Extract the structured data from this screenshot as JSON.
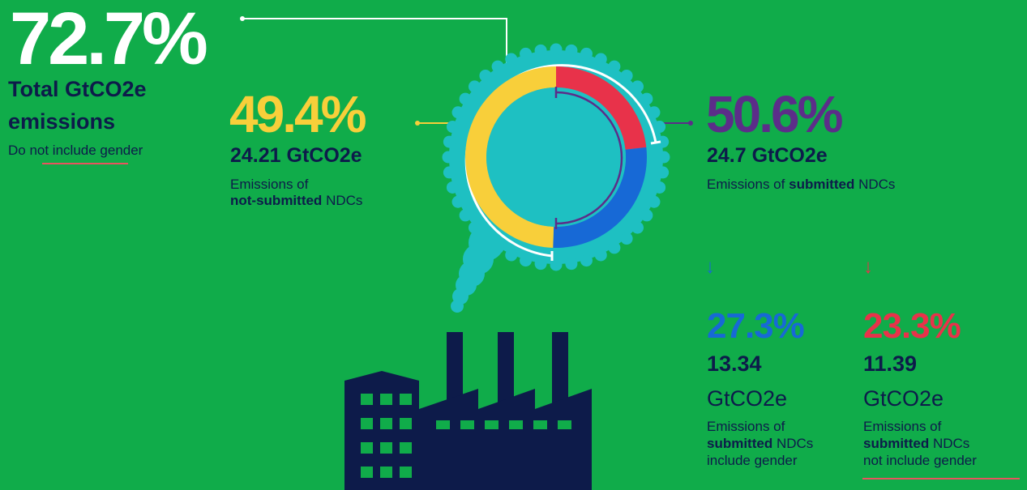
{
  "total": {
    "percent": "72.7%",
    "label": "Total GtCO2e emissions",
    "note": "Do not include gender"
  },
  "not_submitted": {
    "percent": "49.4%",
    "value": "24.21 GtCO2e",
    "desc_prefix": "Emissions of",
    "desc_bold": "not-submitted",
    "desc_suffix": "NDCs"
  },
  "submitted": {
    "percent": "50.6%",
    "value": "24.7 GtCO2e",
    "desc_prefix": "Emissions of",
    "desc_bold": "submitted",
    "desc_suffix": "NDCs"
  },
  "submitted_gender": {
    "percent": "27.3%",
    "value": "13.34",
    "unit": "GtCO2e",
    "desc_prefix": "Emissions of",
    "desc_bold": "submitted",
    "desc_suffix": "NDCs",
    "desc_line3": "include gender"
  },
  "submitted_no_gender": {
    "percent": "23.3%",
    "value": "11.39",
    "unit": "GtCO2e",
    "desc_prefix": "Emissions of",
    "desc_bold": "submitted",
    "desc_suffix": "NDCs",
    "desc_line3": "not include gender"
  },
  "colors": {
    "background": "#10ac4a",
    "not_submitted": "#f8cf3a",
    "submitted": "#5c2d89",
    "submitted_gender": "#1769d6",
    "submitted_no_gender": "#e8324a",
    "smoke": "#1ec0c2",
    "factory": "#0d1b4a",
    "text": "#0d1b4a"
  },
  "icons": [
    "arrow-down-icon",
    "factory-icon",
    "smoke-cloud-icon"
  ],
  "chart_data": {
    "type": "pie",
    "style": "donut",
    "unit": "GtCO2e",
    "categories": [
      "not-submitted NDCs",
      "submitted NDCs include gender",
      "submitted NDCs not include gender"
    ],
    "values": [
      24.21,
      13.34,
      11.39
    ],
    "percentages": [
      49.4,
      27.3,
      23.3
    ],
    "colors": [
      "#f8cf3a",
      "#1769d6",
      "#e8324a"
    ],
    "groups": [
      {
        "name": "not-submitted NDCs",
        "percent": 49.4,
        "value": 24.21
      },
      {
        "name": "submitted NDCs",
        "percent": 50.6,
        "value": 24.7
      }
    ],
    "total_percent": 72.7
  }
}
